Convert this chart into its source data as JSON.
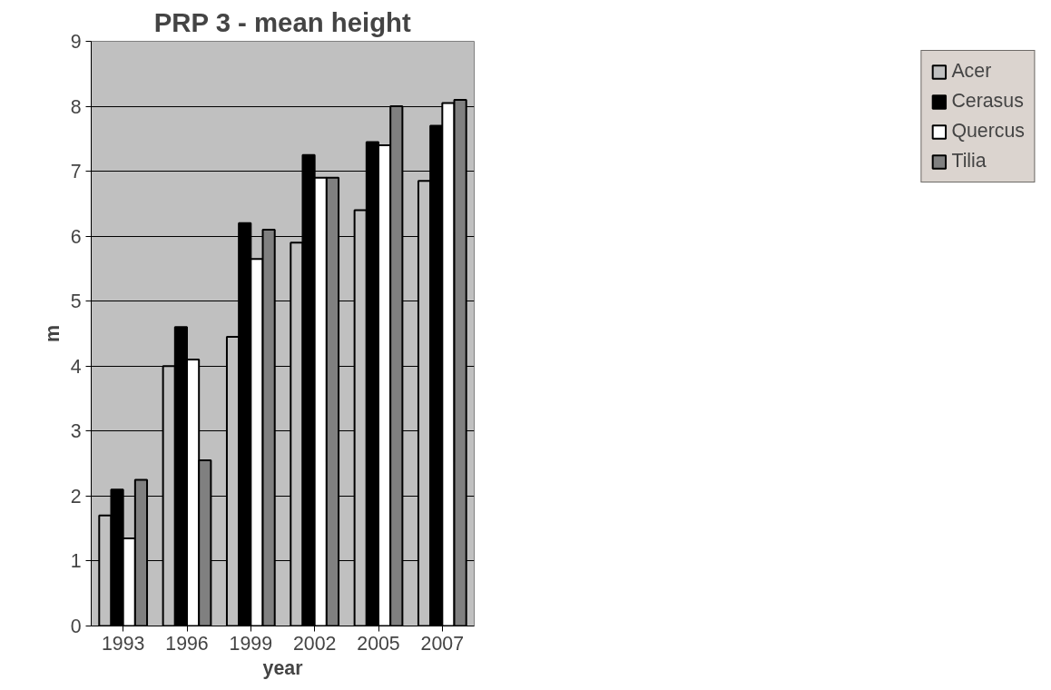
{
  "chart_data": {
    "type": "bar",
    "title": "PRP 3 - mean height",
    "xlabel": "year",
    "ylabel": "m",
    "categories": [
      "1993",
      "1996",
      "1999",
      "2002",
      "2005",
      "2007"
    ],
    "series": [
      {
        "name": "Acer",
        "color": "#c0c0c0",
        "values": [
          1.7,
          4.0,
          4.45,
          5.9,
          6.4,
          6.85
        ]
      },
      {
        "name": "Cerasus",
        "color": "#000000",
        "values": [
          2.1,
          4.6,
          6.2,
          7.25,
          7.45,
          7.7
        ]
      },
      {
        "name": "Quercus",
        "color": "#ffffff",
        "values": [
          1.35,
          4.1,
          5.65,
          6.9,
          7.4,
          8.05
        ]
      },
      {
        "name": "Tilia",
        "color": "#808080",
        "values": [
          2.25,
          2.55,
          6.1,
          6.9,
          8.0,
          8.1
        ]
      }
    ],
    "ylim": [
      0,
      9
    ],
    "yticks": [
      0,
      1,
      2,
      3,
      4,
      5,
      6,
      7,
      8,
      9
    ],
    "grid": "y",
    "legend": "right"
  }
}
